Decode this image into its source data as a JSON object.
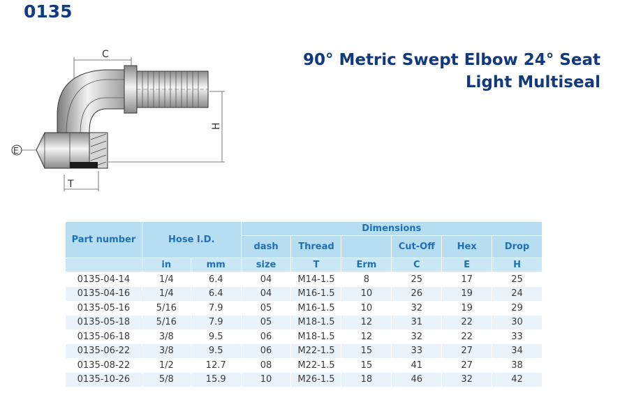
{
  "page": {
    "code": "0135",
    "title_line1": "90° Metric Swept Elbow 24° Seat",
    "title_line2": "Light Multiseal"
  },
  "drawing": {
    "label_c": "C",
    "label_h": "H",
    "label_e": "E",
    "label_t": "T"
  },
  "table": {
    "header_part": "Part number",
    "header_hose": "Hose I.D.",
    "header_dimensions": "Dimensions",
    "sub_headers": [
      "dash",
      "Thread",
      "",
      "Cut-Off",
      "Hex",
      "Drop"
    ],
    "units": [
      "in",
      "mm",
      "size",
      "T",
      "Erm",
      "C",
      "E",
      "H"
    ],
    "rows": [
      [
        "0135-04-14",
        "1/4",
        "6.4",
        "04",
        "M14-1.5",
        "8",
        "25",
        "17",
        "25"
      ],
      [
        "0135-04-16",
        "1/4",
        "6.4",
        "04",
        "M16-1.5",
        "10",
        "26",
        "19",
        "24"
      ],
      [
        "0135-05-16",
        "5/16",
        "7.9",
        "05",
        "M16-1.5",
        "10",
        "32",
        "19",
        "29"
      ],
      [
        "0135-05-18",
        "5/16",
        "7.9",
        "05",
        "M18-1.5",
        "12",
        "31",
        "22",
        "30"
      ],
      [
        "0135-06-18",
        "3/8",
        "9.5",
        "06",
        "M18-1.5",
        "12",
        "32",
        "22",
        "33"
      ],
      [
        "0135-06-22",
        "3/8",
        "9.5",
        "06",
        "M22-1.5",
        "15",
        "33",
        "27",
        "34"
      ],
      [
        "0135-08-22",
        "1/2",
        "12.7",
        "08",
        "M22-1.5",
        "15",
        "41",
        "27",
        "38"
      ],
      [
        "0135-10-26",
        "5/8",
        "15.9",
        "10",
        "M26-1.5",
        "18",
        "46",
        "32",
        "42"
      ]
    ]
  }
}
